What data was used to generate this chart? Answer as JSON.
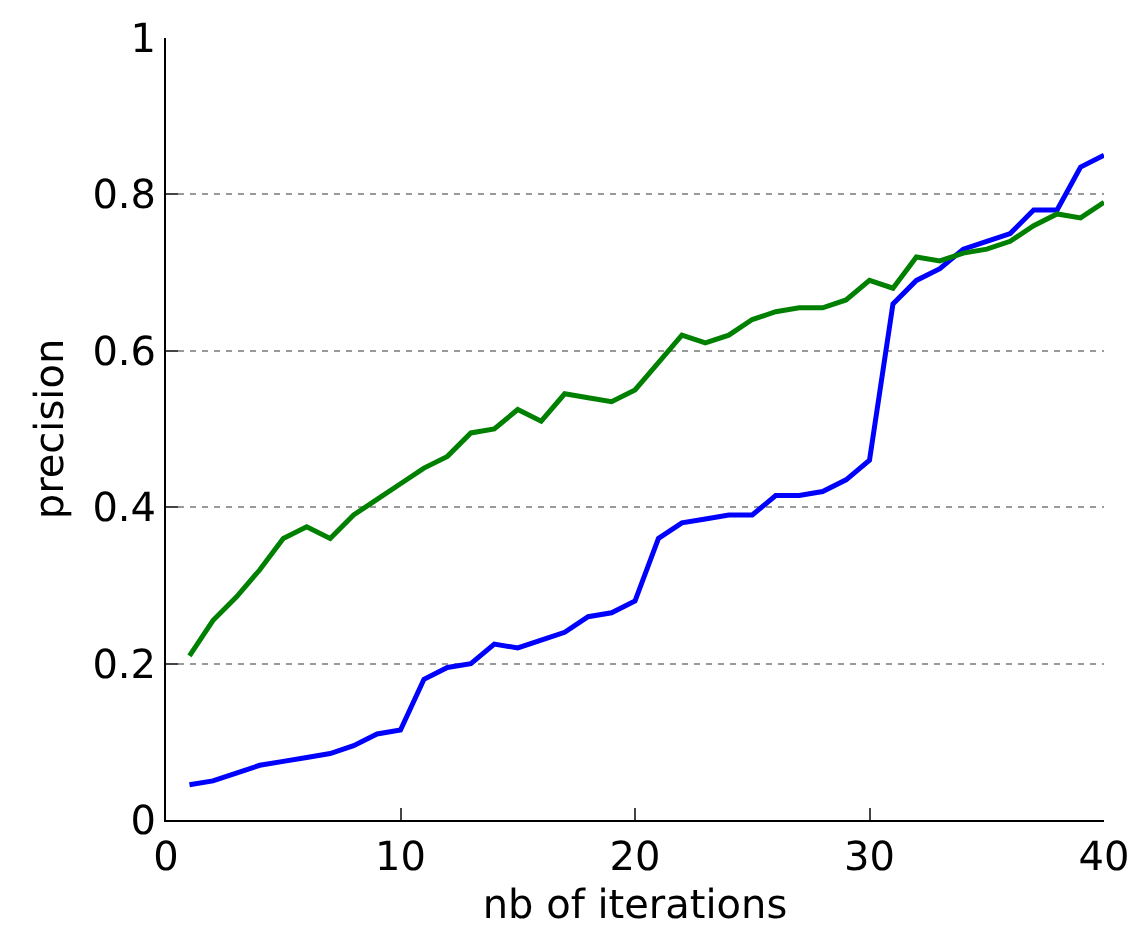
{
  "chart_data": {
    "type": "line",
    "xlabel": "nb of iterations",
    "ylabel": "precision",
    "x": [
      1,
      2,
      3,
      4,
      5,
      6,
      7,
      8,
      9,
      10,
      11,
      12,
      13,
      14,
      15,
      16,
      17,
      18,
      19,
      20,
      21,
      22,
      23,
      24,
      25,
      26,
      27,
      28,
      29,
      30,
      31,
      32,
      33,
      34,
      35,
      36,
      37,
      38,
      39,
      40
    ],
    "series": [
      {
        "color": "#0000ff",
        "values": [
          0.045,
          0.05,
          0.06,
          0.07,
          0.075,
          0.08,
          0.085,
          0.095,
          0.11,
          0.115,
          0.18,
          0.195,
          0.2,
          0.225,
          0.22,
          0.23,
          0.24,
          0.26,
          0.265,
          0.28,
          0.36,
          0.38,
          0.385,
          0.39,
          0.39,
          0.415,
          0.415,
          0.42,
          0.435,
          0.46,
          0.66,
          0.69,
          0.705,
          0.73,
          0.74,
          0.75,
          0.78,
          0.78,
          0.835,
          0.85
        ]
      },
      {
        "color": "#008000",
        "values": [
          0.21,
          0.255,
          0.285,
          0.32,
          0.36,
          0.375,
          0.36,
          0.39,
          0.41,
          0.43,
          0.45,
          0.465,
          0.495,
          0.5,
          0.525,
          0.51,
          0.545,
          0.54,
          0.535,
          0.55,
          0.585,
          0.62,
          0.61,
          0.62,
          0.64,
          0.65,
          0.655,
          0.655,
          0.665,
          0.69,
          0.68,
          0.72,
          0.715,
          0.725,
          0.73,
          0.74,
          0.76,
          0.775,
          0.77,
          0.79
        ]
      }
    ],
    "xlim": [
      0,
      40
    ],
    "xticks": [
      0,
      10,
      20,
      30,
      40
    ],
    "ylim": [
      0,
      1
    ],
    "yticks": [
      0,
      0.2,
      0.4,
      0.6,
      0.8,
      1
    ],
    "grid": "y",
    "marker": "none",
    "line_style": "solid"
  }
}
